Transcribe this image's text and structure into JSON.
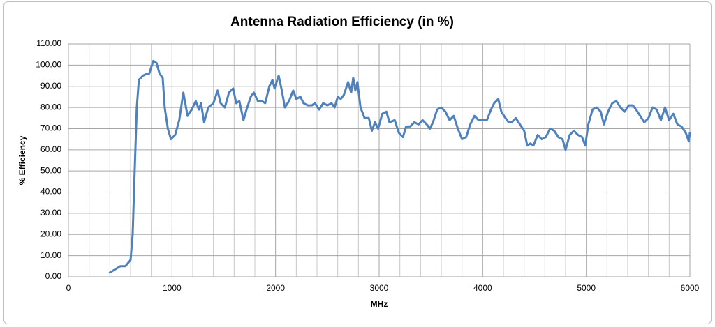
{
  "chart_data": {
    "type": "line",
    "title": "Antenna Radiation Efficiency (in %)",
    "x_label": "MHz",
    "y_label": "% Efficiency",
    "xlim": [
      0,
      6000
    ],
    "xticks": [
      0,
      1000,
      2000,
      3000,
      4000,
      5000,
      6000
    ],
    "x_minor_ticks": [
      200,
      400,
      600,
      800,
      1200,
      1400,
      1600,
      1800,
      2200,
      2400,
      2600,
      2800,
      3200,
      3400,
      3600,
      3800,
      4200,
      4400,
      4600,
      4800,
      5200,
      5400,
      5600,
      5800
    ],
    "ylim": [
      0,
      110
    ],
    "yticks": [
      {
        "value": 0,
        "label": "0.00"
      },
      {
        "value": 10,
        "label": "10.00"
      },
      {
        "value": 20,
        "label": "20.00"
      },
      {
        "value": 30,
        "label": "30.00"
      },
      {
        "value": 40,
        "label": "40.00"
      },
      {
        "value": 50,
        "label": "50.00"
      },
      {
        "value": 60,
        "label": "60.00"
      },
      {
        "value": 70,
        "label": "70.00"
      },
      {
        "value": 80,
        "label": "80.00"
      },
      {
        "value": 90,
        "label": "90.00"
      },
      {
        "value": 100,
        "label": "100.00"
      },
      {
        "value": 110,
        "label": "110.00"
      }
    ],
    "grid": true,
    "series": [
      {
        "color": "#4f81bd",
        "x": [
          400,
          450,
          500,
          550,
          600,
          620,
          640,
          660,
          680,
          720,
          760,
          780,
          820,
          850,
          880,
          910,
          930,
          960,
          990,
          1030,
          1070,
          1110,
          1150,
          1190,
          1230,
          1260,
          1280,
          1310,
          1350,
          1400,
          1440,
          1470,
          1510,
          1550,
          1590,
          1620,
          1650,
          1690,
          1720,
          1760,
          1790,
          1830,
          1870,
          1900,
          1940,
          1970,
          1990,
          2030,
          2060,
          2090,
          2130,
          2170,
          2200,
          2240,
          2270,
          2310,
          2350,
          2380,
          2420,
          2460,
          2500,
          2540,
          2570,
          2600,
          2630,
          2660,
          2700,
          2730,
          2750,
          2770,
          2790,
          2820,
          2860,
          2900,
          2930,
          2960,
          2990,
          3030,
          3070,
          3100,
          3150,
          3190,
          3230,
          3260,
          3300,
          3340,
          3380,
          3420,
          3460,
          3490,
          3520,
          3560,
          3600,
          3640,
          3680,
          3720,
          3760,
          3800,
          3840,
          3880,
          3920,
          3960,
          4000,
          4040,
          4080,
          4110,
          4150,
          4180,
          4220,
          4250,
          4280,
          4320,
          4360,
          4400,
          4430,
          4460,
          4490,
          4530,
          4570,
          4610,
          4650,
          4690,
          4730,
          4770,
          4800,
          4840,
          4880,
          4920,
          4960,
          4990,
          5020,
          5060,
          5100,
          5140,
          5170,
          5210,
          5250,
          5290,
          5330,
          5370,
          5410,
          5450,
          5480,
          5520,
          5560,
          5600,
          5640,
          5680,
          5720,
          5760,
          5800,
          5840,
          5880,
          5920,
          5960,
          5990,
          6000
        ],
        "values": [
          2,
          3.5,
          5,
          5,
          8,
          20,
          50,
          80,
          93,
          95,
          96,
          96,
          102,
          101,
          96,
          94,
          80,
          70,
          65,
          67,
          74,
          87,
          76,
          79,
          83,
          79,
          82,
          73,
          80,
          82,
          88,
          82,
          80,
          87,
          89,
          82,
          83,
          74,
          79,
          85,
          87,
          83,
          83,
          82,
          90,
          93,
          89,
          95,
          88,
          80,
          83,
          88,
          84,
          85,
          82,
          81,
          81,
          82,
          79,
          82,
          81,
          82,
          80,
          85,
          84,
          86,
          92,
          87,
          94,
          88,
          92,
          80,
          75,
          75,
          69,
          73,
          70,
          77,
          78,
          73,
          74,
          68,
          66,
          71,
          71,
          73,
          72,
          74,
          72,
          70,
          73,
          79,
          80,
          78,
          74,
          76,
          70,
          65,
          66,
          72,
          76,
          74,
          74,
          74,
          79,
          82,
          84,
          78,
          75,
          73,
          73,
          75,
          72,
          69,
          62,
          63,
          62,
          67,
          65,
          66,
          70,
          69,
          66,
          65,
          60,
          67,
          69,
          67,
          66,
          62,
          72,
          79,
          80,
          78,
          72,
          78,
          82,
          83,
          80,
          78,
          81,
          81,
          79,
          76,
          73,
          75,
          80,
          79,
          74,
          80,
          74,
          77,
          72,
          71,
          68,
          64,
          68
        ]
      }
    ]
  }
}
